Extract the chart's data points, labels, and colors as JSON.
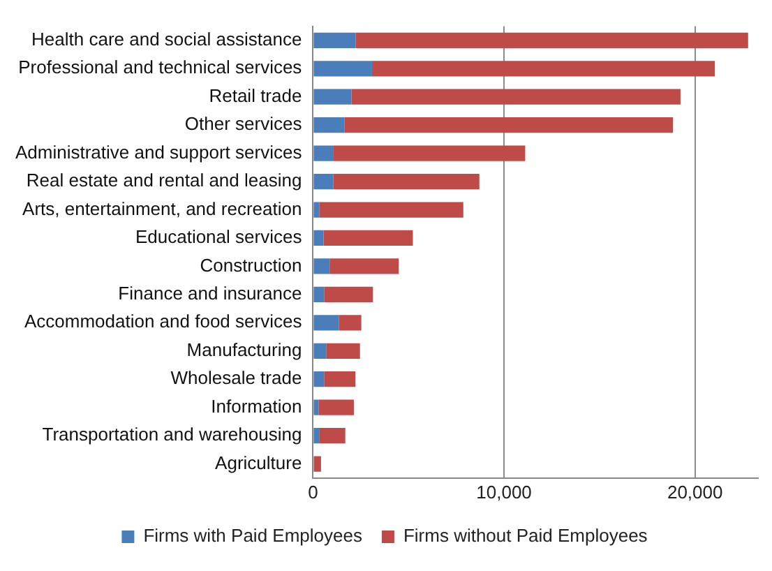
{
  "chart_data": {
    "type": "bar",
    "orientation": "horizontal",
    "stacked": true,
    "categories": [
      "Health care and social assistance",
      "Professional and technical services",
      "Retail trade",
      "Other services",
      "Administrative and support services",
      "Real estate and rental and leasing",
      "Arts, entertainment, and recreation",
      "Educational services",
      "Construction",
      "Finance and insurance",
      "Accommodation and food services",
      "Manufacturing",
      "Wholesale trade",
      "Information",
      "Transportation and warehousing",
      "Agriculture"
    ],
    "series": [
      {
        "name": "Firms with Paid Employees",
        "color": "#4a7ebb",
        "values": [
          2240,
          3090,
          2010,
          1640,
          1080,
          1060,
          340,
          550,
          870,
          580,
          1350,
          710,
          580,
          290,
          320,
          50
        ]
      },
      {
        "name": "Firms without Paid Employees",
        "color": "#be4b48",
        "values": [
          20540,
          17950,
          17230,
          17210,
          10030,
          7650,
          7530,
          4680,
          3620,
          2560,
          1180,
          1750,
          1640,
          1850,
          1370,
          370
        ]
      }
    ],
    "xlim": [
      0,
      23300
    ],
    "xticks": [
      0,
      {
        "value": 10000,
        "label": "10,000"
      },
      {
        "value": 20000,
        "label": "20,000"
      }
    ],
    "grid": "x",
    "legend": "bottom"
  }
}
